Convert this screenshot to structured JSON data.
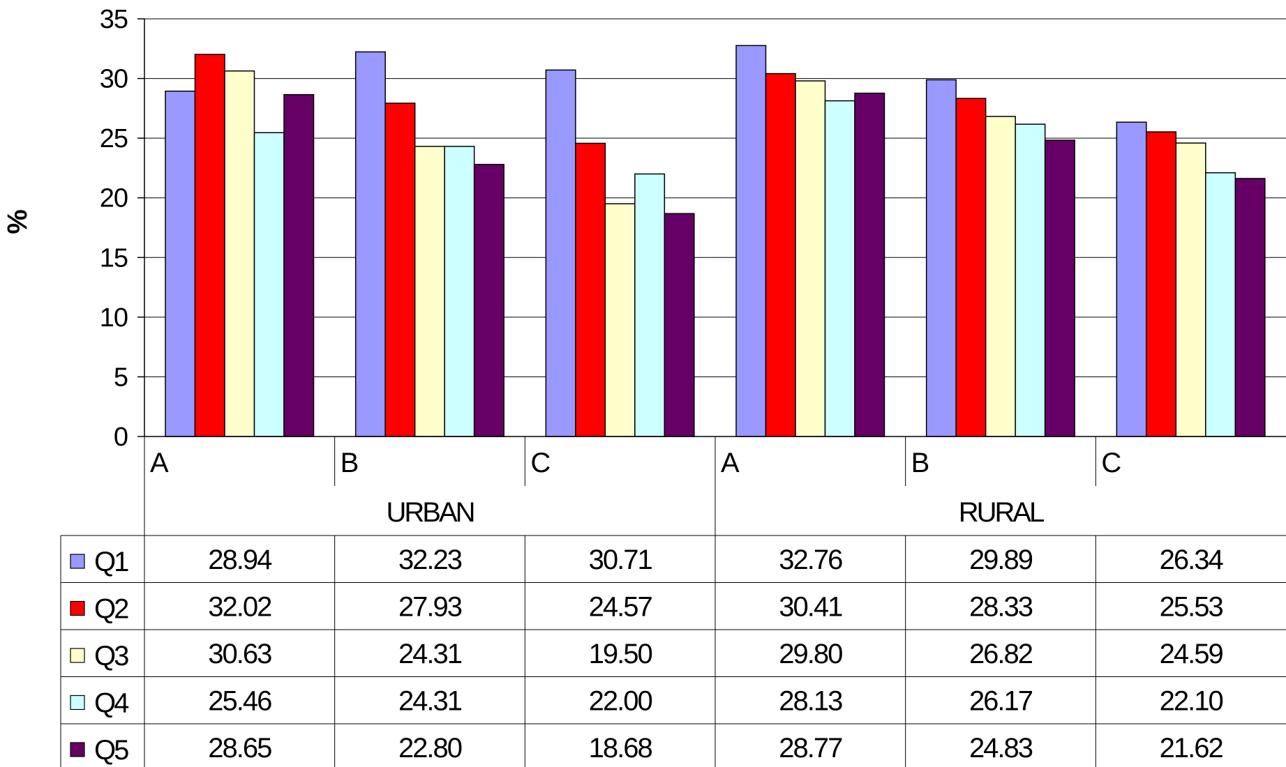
{
  "chart_data": {
    "type": "bar",
    "ylabel": "%",
    "ylim": [
      0,
      35
    ],
    "yticks": [
      "0",
      "5",
      "10",
      "15",
      "20",
      "25",
      "30",
      "35"
    ],
    "grid": true,
    "legend": "data table below chart",
    "groups": [
      "URBAN",
      "RURAL"
    ],
    "categories": [
      "A",
      "B",
      "C",
      "A",
      "B",
      "C"
    ],
    "series": [
      {
        "name": "Q1",
        "color": "#9999ff",
        "values": [
          28.94,
          32.23,
          30.71,
          32.76,
          29.89,
          26.34
        ],
        "labels": [
          "28.94",
          "32.23",
          "30.71",
          "32.76",
          "29.89",
          "26.34"
        ]
      },
      {
        "name": "Q2",
        "color": "#ff0000",
        "values": [
          32.02,
          27.93,
          24.57,
          30.41,
          28.33,
          25.53
        ],
        "labels": [
          "32.02",
          "27.93",
          "24.57",
          "30.41",
          "28.33",
          "25.53"
        ]
      },
      {
        "name": "Q3",
        "color": "#ffffcc",
        "values": [
          30.63,
          24.31,
          19.5,
          29.8,
          26.82,
          24.59
        ],
        "labels": [
          "30.63",
          "24.31",
          "19.50",
          "29.80",
          "26.82",
          "24.59"
        ]
      },
      {
        "name": "Q4",
        "color": "#ccffff",
        "values": [
          25.46,
          24.31,
          22.0,
          28.13,
          26.17,
          22.1
        ],
        "labels": [
          "25.46",
          "24.31",
          "22.00",
          "28.13",
          "26.17",
          "22.10"
        ]
      },
      {
        "name": "Q5",
        "color": "#660066",
        "values": [
          28.65,
          22.8,
          18.68,
          28.77,
          24.83,
          21.62
        ],
        "labels": [
          "28.65",
          "22.80",
          "18.68",
          "28.77",
          "24.83",
          "21.62"
        ]
      }
    ]
  }
}
